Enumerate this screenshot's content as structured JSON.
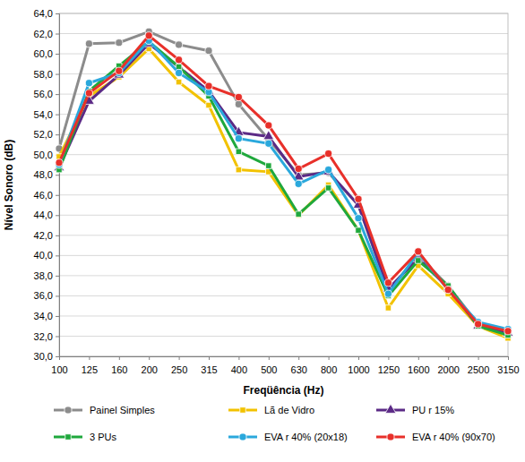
{
  "chart_data": {
    "type": "line",
    "x_label": "Freqüência (Hz)",
    "y_label": "Nível Sonoro (dB)",
    "categories": [
      "100",
      "125",
      "160",
      "200",
      "250",
      "315",
      "400",
      "500",
      "630",
      "800",
      "1000",
      "1250",
      "1600",
      "2000",
      "2500",
      "3150"
    ],
    "ylim": [
      30,
      64
    ],
    "yticks": [
      {
        "value": 30,
        "label": "30,0"
      },
      {
        "value": 32,
        "label": "32,0"
      },
      {
        "value": 34,
        "label": "34,0"
      },
      {
        "value": 36,
        "label": "36,0"
      },
      {
        "value": 38,
        "label": "38,0"
      },
      {
        "value": 40,
        "label": "40,0"
      },
      {
        "value": 42,
        "label": "42,0"
      },
      {
        "value": 44,
        "label": "44,0"
      },
      {
        "value": 46,
        "label": "46,0"
      },
      {
        "value": 48,
        "label": "48,0"
      },
      {
        "value": 50,
        "label": "50,0"
      },
      {
        "value": 52,
        "label": "52,0"
      },
      {
        "value": 54,
        "label": "54,0"
      },
      {
        "value": 56,
        "label": "56,0"
      },
      {
        "value": 58,
        "label": "58,0"
      },
      {
        "value": 60,
        "label": "60,0"
      },
      {
        "value": 62,
        "label": "62,0"
      },
      {
        "value": 64,
        "label": "64,0"
      }
    ],
    "grid": true,
    "legend": "bottom",
    "series": [
      {
        "name": "Painel Simples",
        "color": "#8c8c8c",
        "marker": "circle",
        "values": [
          50.6,
          61.0,
          61.1,
          62.2,
          60.9,
          60.3,
          55.0,
          51.5,
          48.0,
          48.2,
          45.0,
          36.5,
          40.0,
          37.0,
          33.2,
          32.3
        ]
      },
      {
        "name": "Lã de Vidro",
        "color": "#f2c200",
        "marker": "square",
        "values": [
          49.8,
          55.8,
          57.7,
          60.5,
          57.2,
          54.9,
          48.5,
          48.3,
          44.0,
          47.0,
          42.5,
          34.8,
          39.0,
          36.2,
          33.0,
          31.8
        ]
      },
      {
        "name": "PU r 15%",
        "color": "#5b2a86",
        "marker": "triangle",
        "values": [
          48.7,
          55.3,
          57.9,
          61.0,
          58.7,
          56.3,
          52.2,
          51.8,
          47.8,
          48.3,
          45.0,
          36.7,
          39.7,
          36.8,
          33.0,
          32.3
        ]
      },
      {
        "name": "3 PUs",
        "color": "#1fa83c",
        "marker": "square",
        "values": [
          48.5,
          56.3,
          58.8,
          61.2,
          58.7,
          55.8,
          50.3,
          48.9,
          44.1,
          46.7,
          42.5,
          36.0,
          39.5,
          37.0,
          33.0,
          32.1
        ]
      },
      {
        "name": "EVA r 40% (20x18)",
        "color": "#2aa8dc",
        "marker": "circle",
        "values": [
          49.0,
          57.1,
          58.1,
          61.3,
          58.1,
          56.2,
          51.6,
          51.1,
          47.1,
          48.5,
          43.7,
          36.2,
          40.3,
          36.6,
          33.4,
          32.7
        ]
      },
      {
        "name": "EVA r 40% (90x70)",
        "color": "#e8302a",
        "marker": "circle",
        "values": [
          49.2,
          56.1,
          58.3,
          61.8,
          59.4,
          56.8,
          55.7,
          52.9,
          48.6,
          50.1,
          45.6,
          37.3,
          40.4,
          36.6,
          33.2,
          32.5
        ]
      }
    ]
  }
}
